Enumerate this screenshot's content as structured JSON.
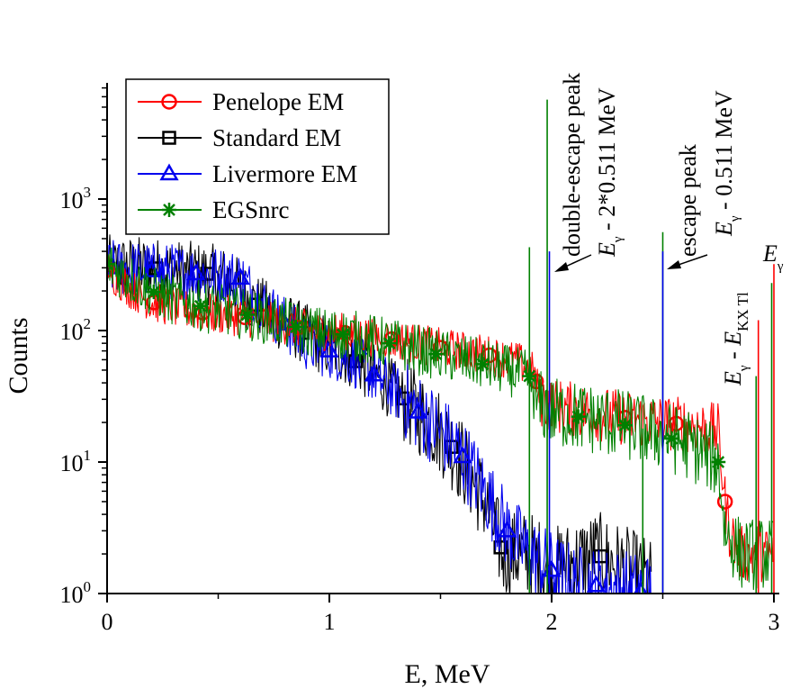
{
  "chart_data": {
    "type": "line",
    "xlabel": "E, MeV",
    "ylabel": "Counts",
    "xlim": [
      0,
      3.1
    ],
    "ylim": [
      1,
      7000
    ],
    "yscale": "log",
    "x_ticks": [
      {
        "value": 0,
        "label": "0"
      },
      {
        "value": 1,
        "label": "1"
      },
      {
        "value": 2,
        "label": "2"
      },
      {
        "value": 3,
        "label": "3"
      }
    ],
    "y_ticks": [
      {
        "value": 1,
        "base": "10",
        "exp": "0"
      },
      {
        "value": 10,
        "base": "10",
        "exp": "1"
      },
      {
        "value": 100,
        "base": "10",
        "exp": "2"
      },
      {
        "value": 1000,
        "base": "10",
        "exp": "3"
      }
    ],
    "legend_position": "top-left",
    "series": [
      {
        "name": "Penelope EM",
        "color": "#ff0000",
        "marker": "circle",
        "points": [
          [
            0,
            290
          ],
          [
            0.1,
            210
          ],
          [
            0.2,
            165
          ],
          [
            0.3,
            150
          ],
          [
            0.45,
            135
          ],
          [
            0.6,
            128
          ],
          [
            0.75,
            115
          ],
          [
            0.9,
            102
          ],
          [
            1.1,
            95
          ],
          [
            1.3,
            85
          ],
          [
            1.5,
            74
          ],
          [
            1.7,
            66
          ],
          [
            1.85,
            58
          ],
          [
            1.92,
            48
          ],
          [
            1.95,
            30
          ],
          [
            2.0,
            27
          ],
          [
            2.1,
            25
          ],
          [
            2.3,
            22
          ],
          [
            2.5,
            20
          ],
          [
            2.65,
            19
          ],
          [
            2.75,
            17
          ],
          [
            2.78,
            5
          ],
          [
            2.8,
            3
          ],
          [
            2.85,
            2
          ],
          [
            2.95,
            2
          ],
          [
            3.0,
            2
          ]
        ],
        "marker_x": [
          0,
          0.21,
          0.43,
          0.62,
          0.86,
          1.07,
          1.28,
          1.5,
          1.72,
          1.93,
          2.33,
          2.56,
          2.78
        ]
      },
      {
        "name": "Standard EM",
        "color": "#000000",
        "marker": "square",
        "points": [
          [
            0,
            310
          ],
          [
            0.1,
            305
          ],
          [
            0.2,
            300
          ],
          [
            0.3,
            285
          ],
          [
            0.45,
            270
          ],
          [
            0.55,
            245
          ],
          [
            0.65,
            165
          ],
          [
            0.8,
            115
          ],
          [
            0.95,
            82
          ],
          [
            1.1,
            62
          ],
          [
            1.25,
            40
          ],
          [
            1.4,
            24
          ],
          [
            1.5,
            17
          ],
          [
            1.6,
            10
          ],
          [
            1.7,
            5
          ],
          [
            1.78,
            2
          ],
          [
            1.9,
            2
          ],
          [
            2.0,
            1.5
          ],
          [
            2.2,
            2
          ],
          [
            2.45,
            1.2
          ]
        ],
        "marker_x": [
          0,
          0.22,
          0.45,
          0.67,
          0.88,
          1.12,
          1.33,
          1.55,
          1.77,
          2.22
        ]
      },
      {
        "name": "Livermore EM",
        "color": "#0000ee",
        "marker": "triangle",
        "points": [
          [
            0,
            300
          ],
          [
            0.1,
            295
          ],
          [
            0.2,
            285
          ],
          [
            0.3,
            280
          ],
          [
            0.4,
            270
          ],
          [
            0.5,
            265
          ],
          [
            0.6,
            250
          ],
          [
            0.7,
            160
          ],
          [
            0.8,
            112
          ],
          [
            0.9,
            80
          ],
          [
            1.0,
            70
          ],
          [
            1.1,
            62
          ],
          [
            1.2,
            46
          ],
          [
            1.3,
            34
          ],
          [
            1.4,
            24
          ],
          [
            1.5,
            17
          ],
          [
            1.6,
            11
          ],
          [
            1.7,
            6
          ],
          [
            1.8,
            3
          ],
          [
            1.9,
            2
          ],
          [
            2.0,
            1.5
          ],
          [
            2.1,
            1.2
          ],
          [
            2.3,
            1.1
          ],
          [
            2.45,
            1
          ]
        ],
        "marker_x": [
          0,
          0.2,
          0.4,
          0.6,
          0.8,
          1.0,
          1.2,
          1.4,
          1.6,
          1.8,
          2.0,
          2.2,
          2.4
        ]
      },
      {
        "name": "EGSnrc",
        "color": "#008000",
        "marker": "star",
        "points": [
          [
            0,
            320
          ],
          [
            0.1,
            250
          ],
          [
            0.2,
            200
          ],
          [
            0.3,
            170
          ],
          [
            0.45,
            150
          ],
          [
            0.6,
            135
          ],
          [
            0.75,
            120
          ],
          [
            0.9,
            100
          ],
          [
            1.1,
            92
          ],
          [
            1.3,
            78
          ],
          [
            1.5,
            65
          ],
          [
            1.7,
            55
          ],
          [
            1.9,
            45
          ],
          [
            1.93,
            28
          ],
          [
            2.0,
            24
          ],
          [
            2.2,
            21
          ],
          [
            2.4,
            18
          ],
          [
            2.6,
            14
          ],
          [
            2.75,
            10
          ],
          [
            2.78,
            3
          ],
          [
            2.85,
            2
          ],
          [
            2.95,
            2
          ],
          [
            3.0,
            2
          ]
        ],
        "marker_x": [
          0,
          0.21,
          0.42,
          0.63,
          0.85,
          1.06,
          1.27,
          1.48,
          1.69,
          1.9,
          2.12,
          2.33,
          2.54,
          2.75
        ]
      }
    ],
    "peaks": [
      {
        "color": "#008000",
        "x": 1.9,
        "y": 430
      },
      {
        "color": "#008000",
        "x": 1.98,
        "y": 5700
      },
      {
        "color": "#0000ee",
        "x": 1.99,
        "y": 400
      },
      {
        "color": "#008000",
        "x": 2.41,
        "y": 18
      },
      {
        "color": "#008000",
        "x": 2.5,
        "y": 560
      },
      {
        "color": "#0000ee",
        "x": 2.5,
        "y": 400
      },
      {
        "color": "#ff0000",
        "x": 2.93,
        "y": 120
      },
      {
        "color": "#008000",
        "x": 2.92,
        "y": 45
      },
      {
        "color": "#008000",
        "x": 2.99,
        "y": 230
      },
      {
        "color": "#ff0000",
        "x": 3.0,
        "y": 320
      }
    ],
    "annotations": {
      "double_escape_line1": "double-escape peak",
      "double_escape_line2_E": "E",
      "double_escape_line2_sub": "γ",
      "double_escape_line2_rest": " - 2*0.511 MeV",
      "escape_line1": "escape peak",
      "escape_line2_E": "E",
      "escape_line2_sub": "γ",
      "escape_line2_rest": " - 0.511 MeV",
      "kx_E1": "E",
      "kx_sub1": "γ",
      "kx_mid": " - ",
      "kx_E2": "E",
      "kx_sub2": "KX Tl",
      "egamma_E": "E",
      "egamma_sub": "γ"
    }
  }
}
